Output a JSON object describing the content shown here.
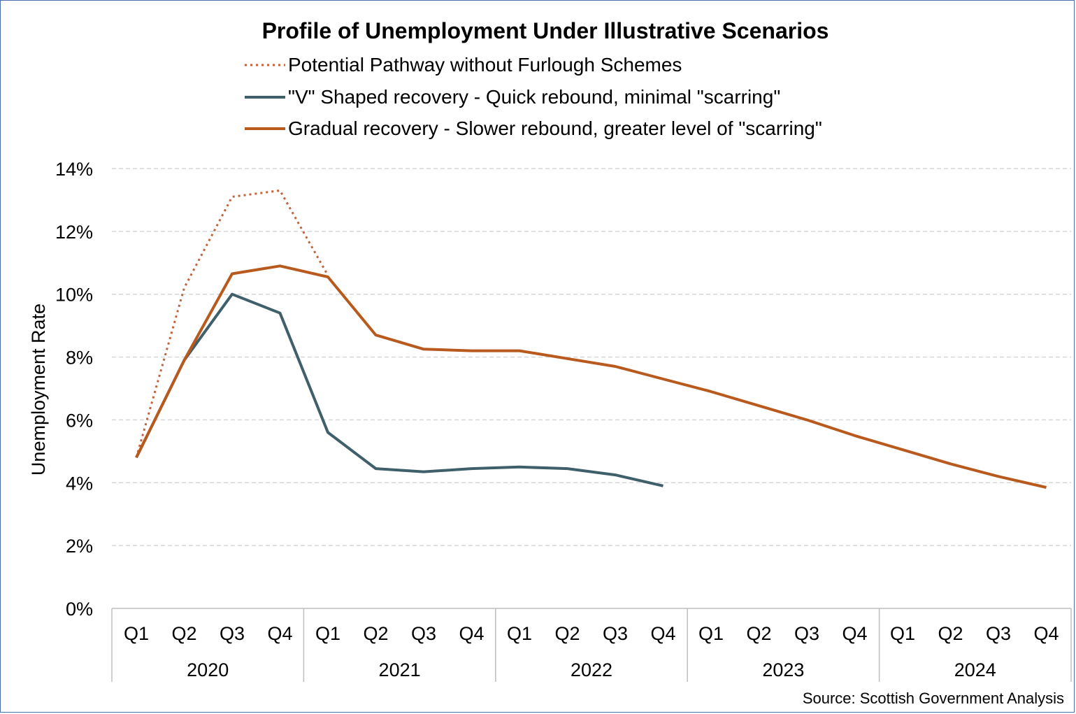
{
  "chart_data": {
    "type": "line",
    "title": "Profile  of Unemployment  Under Illustrative  Scenarios",
    "ylabel": "Unemployment Rate",
    "xlabel": "",
    "ylim": [
      0,
      14
    ],
    "y_ticks": [
      0,
      2,
      4,
      6,
      8,
      10,
      12,
      14
    ],
    "y_tick_format": "percent",
    "quarters": [
      "Q1",
      "Q2",
      "Q3",
      "Q4",
      "Q1",
      "Q2",
      "Q3",
      "Q4",
      "Q1",
      "Q2",
      "Q3",
      "Q4",
      "Q1",
      "Q2",
      "Q3",
      "Q4",
      "Q1",
      "Q2",
      "Q3",
      "Q4"
    ],
    "years": [
      "2020",
      "2021",
      "2022",
      "2023",
      "2024"
    ],
    "grid": true,
    "legend_position": "top",
    "series": [
      {
        "name": "Potential Pathway without Furlough Schemes",
        "color": "#c0623a",
        "style": "dotted",
        "values": [
          4.8,
          10.2,
          13.1,
          13.3,
          10.6,
          null,
          null,
          null,
          null,
          null,
          null,
          null,
          null,
          null,
          null,
          null,
          null,
          null,
          null,
          null
        ]
      },
      {
        "name": "\"V\" Shaped recovery - Quick rebound, minimal \"scarring\"",
        "color": "#3f5f6b",
        "style": "solid",
        "values": [
          4.8,
          7.9,
          10.0,
          9.4,
          5.6,
          4.45,
          4.35,
          4.45,
          4.5,
          4.45,
          4.25,
          3.9,
          null,
          null,
          null,
          null,
          null,
          null,
          null,
          null
        ]
      },
      {
        "name": "Gradual recovery - Slower rebound, greater level of \"scarring\"",
        "color": "#b85a1e",
        "style": "solid",
        "values": [
          4.8,
          7.9,
          10.65,
          10.9,
          10.55,
          8.7,
          8.25,
          8.2,
          8.2,
          7.95,
          7.7,
          7.3,
          6.9,
          6.45,
          6.0,
          5.5,
          5.05,
          4.6,
          4.2,
          3.85
        ]
      }
    ],
    "source": "Source: Scottish Government Analysis"
  }
}
